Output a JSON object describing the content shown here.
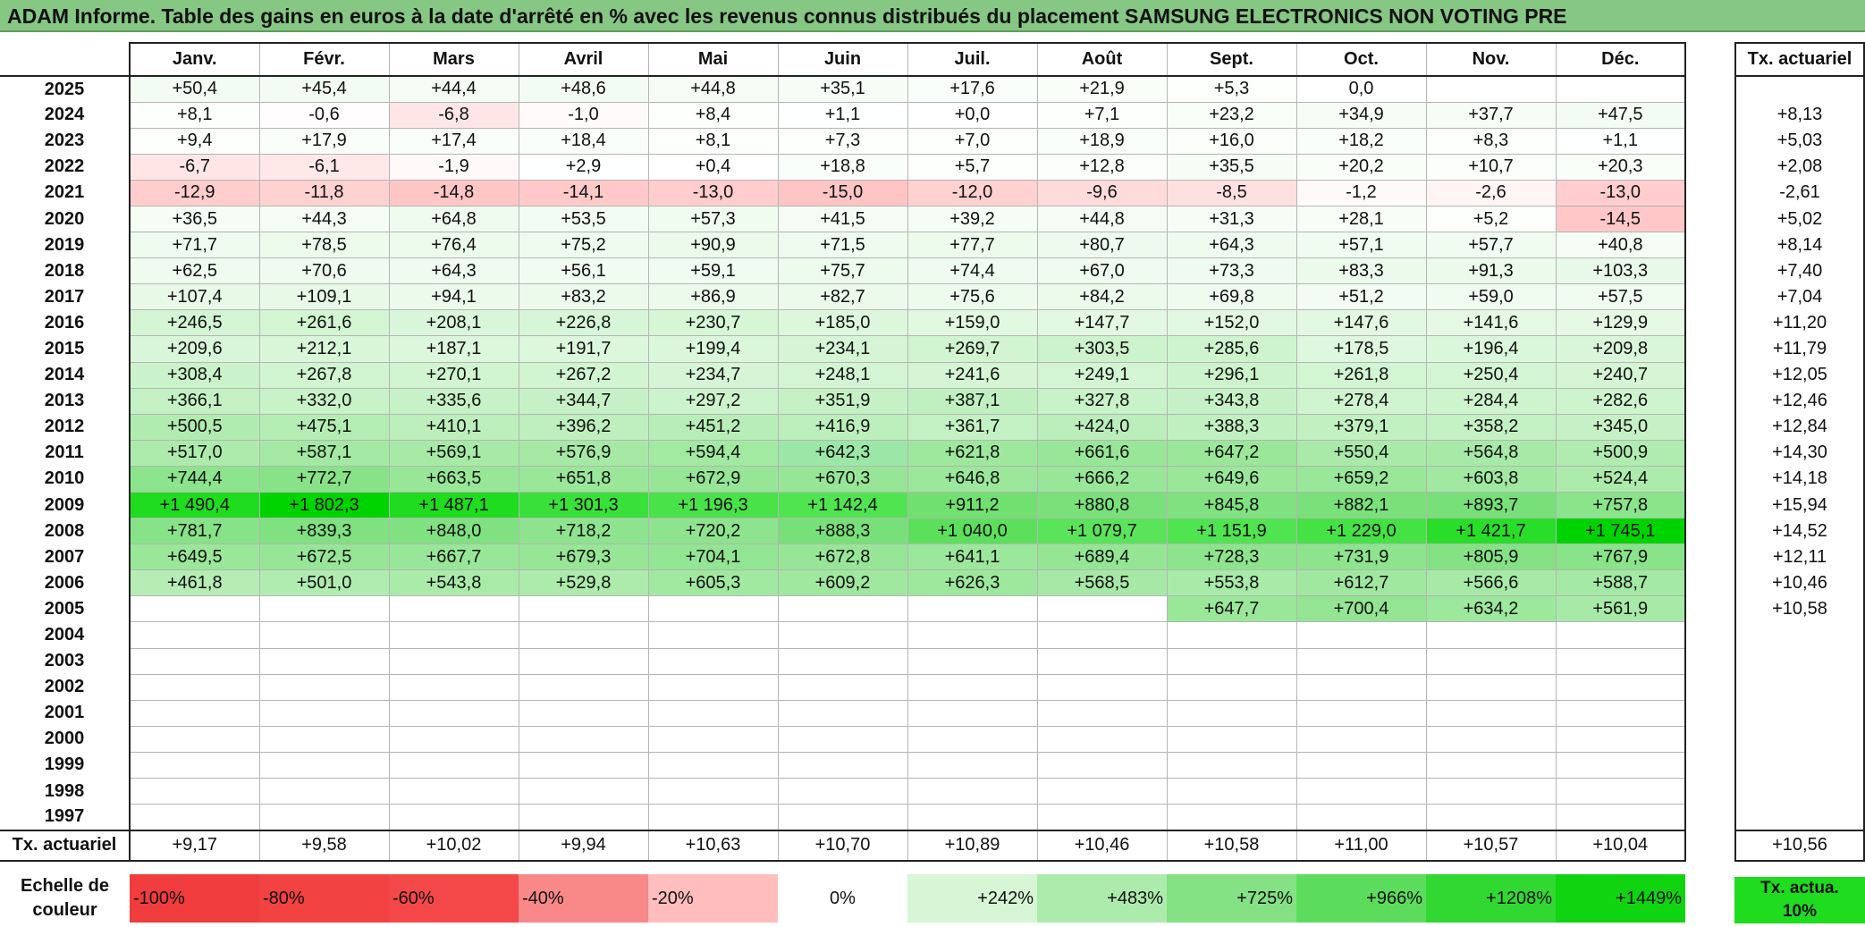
{
  "title": "ADAM Informe. Table des gains en euros à la date d'arrêté en % avec les revenus connus distribués du placement SAMSUNG ELECTRONICS NON VOTING PRE",
  "months": [
    "Janv.",
    "Févr.",
    "Mars",
    "Avril",
    "Mai",
    "Juin",
    "Juil.",
    "Août",
    "Sept.",
    "Oct.",
    "Nov.",
    "Déc."
  ],
  "tx_header": "Tx. actuariel",
  "rows": [
    {
      "year": "2025",
      "cells": [
        "+50,4",
        "+45,4",
        "+44,4",
        "+48,6",
        "+44,8",
        "+35,1",
        "+17,6",
        "+21,9",
        "+5,3",
        "0,0",
        "",
        ""
      ],
      "colors": [
        "#f3fcf3",
        "#f3fcf3",
        "#f4fcf4",
        "#f3fcf3",
        "#f4fcf4",
        "#f6fdf6",
        "#fafefa",
        "#f9fef9",
        "#fdfffd",
        "#ffffff",
        "#ffffff",
        "#ffffff"
      ],
      "tx": ""
    },
    {
      "year": "2024",
      "cells": [
        "+8,1",
        "-0,6",
        "-6,8",
        "-1,0",
        "+8,4",
        "+1,1",
        "+0,0",
        "+7,1",
        "+23,2",
        "+34,9",
        "+37,7",
        "+47,5"
      ],
      "colors": [
        "#fdfffd",
        "#fffdfd",
        "#ffe6e6",
        "#fffbfb",
        "#fdfffd",
        "#feffff",
        "#ffffff",
        "#fdfffd",
        "#f8fef8",
        "#f6fdf6",
        "#f5fdf5",
        "#f3fcf3"
      ],
      "tx": "+8,13"
    },
    {
      "year": "2023",
      "cells": [
        "+9,4",
        "+17,9",
        "+17,4",
        "+18,4",
        "+8,1",
        "+7,3",
        "+7,0",
        "+18,9",
        "+16,0",
        "+18,2",
        "+8,3",
        "+1,1"
      ],
      "colors": [
        "#fdfffd",
        "#fafefa",
        "#fafefa",
        "#fafefa",
        "#fdfffd",
        "#fdfffd",
        "#fdfffd",
        "#fafefa",
        "#fbfefb",
        "#fafefa",
        "#fdfffd",
        "#feffff"
      ],
      "tx": "+5,03"
    },
    {
      "year": "2022",
      "cells": [
        "-6,7",
        "-6,1",
        "-1,9",
        "+2,9",
        "+0,4",
        "+18,8",
        "+5,7",
        "+12,8",
        "+35,5",
        "+20,2",
        "+10,7",
        "+20,3"
      ],
      "colors": [
        "#ffe6e6",
        "#ffe8e8",
        "#fff9f9",
        "#feffff",
        "#ffffff",
        "#fafefa",
        "#fdfffd",
        "#fcfefc",
        "#f6fdf6",
        "#f9fef9",
        "#fcfefc",
        "#f9fef9"
      ],
      "tx": "+2,08"
    },
    {
      "year": "2021",
      "cells": [
        "-12,9",
        "-11,8",
        "-14,8",
        "-14,1",
        "-13,0",
        "-15,0",
        "-12,0",
        "-9,6",
        "-8,5",
        "-1,2",
        "-2,6",
        "-13,0"
      ],
      "colors": [
        "#ffcdcd",
        "#ffd2d2",
        "#ffc6c6",
        "#ffc9c9",
        "#ffcdcd",
        "#ffc5c5",
        "#ffd1d1",
        "#ffdbdb",
        "#ffe0e0",
        "#fffafa",
        "#fff5f5",
        "#ffcdcd"
      ],
      "tx": "-2,61"
    },
    {
      "year": "2020",
      "cells": [
        "+36,5",
        "+44,3",
        "+64,8",
        "+53,5",
        "+57,3",
        "+41,5",
        "+39,2",
        "+44,8",
        "+31,3",
        "+28,1",
        "+5,2",
        "-14,5"
      ],
      "colors": [
        "#f5fdf5",
        "#f4fcf4",
        "#f0fbf0",
        "#f2fcf2",
        "#f1fcf1",
        "#f4fcf4",
        "#f5fdf5",
        "#f4fcf4",
        "#f6fdf6",
        "#f7fdf7",
        "#fdfffd",
        "#ffc7c7"
      ],
      "tx": "+5,02"
    },
    {
      "year": "2019",
      "cells": [
        "+71,7",
        "+78,5",
        "+76,4",
        "+75,2",
        "+90,9",
        "+71,5",
        "+77,7",
        "+80,7",
        "+64,3",
        "+57,1",
        "+57,7",
        "+40,8"
      ],
      "colors": [
        "#eefbee",
        "#edfbed",
        "#edfbed",
        "#eefbee",
        "#ebfaeb",
        "#eefbee",
        "#edfbed",
        "#edfaed",
        "#f0fbf0",
        "#f1fcf1",
        "#f1fcf1",
        "#f4fcf4"
      ],
      "tx": "+8,14"
    },
    {
      "year": "2018",
      "cells": [
        "+62,5",
        "+70,6",
        "+64,3",
        "+56,1",
        "+59,1",
        "+75,7",
        "+74,4",
        "+67,0",
        "+73,3",
        "+83,3",
        "+91,3",
        "+103,3"
      ],
      "colors": [
        "#f0fbf0",
        "#eefbee",
        "#f0fbf0",
        "#f1fcf1",
        "#f1fcf1",
        "#edfbed",
        "#eefbee",
        "#effbef",
        "#eefbee",
        "#ecfaec",
        "#ebfaeb",
        "#e9f9e9"
      ],
      "tx": "+7,40"
    },
    {
      "year": "2017",
      "cells": [
        "+107,4",
        "+109,1",
        "+94,1",
        "+83,2",
        "+86,9",
        "+82,7",
        "+75,6",
        "+84,2",
        "+69,8",
        "+51,2",
        "+59,0",
        "+57,5"
      ],
      "colors": [
        "#e8f9e8",
        "#e8f9e8",
        "#ebfaeb",
        "#ecfaec",
        "#ecfaec",
        "#ecfaec",
        "#edfbed",
        "#ecfaec",
        "#effbef",
        "#f2fcf2",
        "#f1fcf1",
        "#f1fcf1"
      ],
      "tx": "+7,04"
    },
    {
      "year": "2016",
      "cells": [
        "+246,5",
        "+261,6",
        "+208,1",
        "+226,8",
        "+230,7",
        "+185,0",
        "+159,0",
        "+147,7",
        "+152,0",
        "+147,6",
        "+141,6",
        "+129,9"
      ],
      "colors": [
        "#d4f5d4",
        "#d2f5d2",
        "#daf6da",
        "#d7f6d7",
        "#d6f6d6",
        "#ddf7dd",
        "#e1f8e1",
        "#e3f8e3",
        "#e2f8e2",
        "#e3f8e3",
        "#e4f8e4",
        "#e5f9e5"
      ],
      "tx": "+11,20"
    },
    {
      "year": "2015",
      "cells": [
        "+209,6",
        "+212,1",
        "+187,1",
        "+191,7",
        "+199,4",
        "+234,1",
        "+269,7",
        "+303,5",
        "+285,6",
        "+178,5",
        "+196,4",
        "+209,8"
      ],
      "colors": [
        "#daf6da",
        "#d9f6d9",
        "#ddf7dd",
        "#dcf7dc",
        "#dbf7db",
        "#d6f5d6",
        "#d1f4d1",
        "#ccf3cc",
        "#cef4ce",
        "#def7de",
        "#dbf7db",
        "#daf6da"
      ],
      "tx": "+11,79"
    },
    {
      "year": "2014",
      "cells": [
        "+308,4",
        "+267,8",
        "+270,1",
        "+267,2",
        "+234,7",
        "+248,1",
        "+241,6",
        "+249,1",
        "+296,1",
        "+261,8",
        "+250,4",
        "+240,7"
      ],
      "colors": [
        "#cbf3cb",
        "#d1f4d1",
        "#d1f4d1",
        "#d1f4d1",
        "#d6f5d6",
        "#d4f5d4",
        "#d5f5d5",
        "#d4f5d4",
        "#cdf3cd",
        "#d2f5d2",
        "#d4f5d4",
        "#d5f5d5"
      ],
      "tx": "+12,05"
    },
    {
      "year": "2013",
      "cells": [
        "+366,1",
        "+332,0",
        "+335,6",
        "+344,7",
        "+297,2",
        "+351,9",
        "+387,1",
        "+327,8",
        "+343,8",
        "+278,4",
        "+284,4",
        "+282,6"
      ],
      "colors": [
        "#c3f1c3",
        "#c8f2c8",
        "#c7f2c7",
        "#c6f1c6",
        "#cdf3cd",
        "#c5f1c5",
        "#c0f0c0",
        "#c8f2c8",
        "#c6f1c6",
        "#cff4cf",
        "#cef4ce",
        "#cef4ce"
      ],
      "tx": "+12,46"
    },
    {
      "year": "2012",
      "cells": [
        "+500,5",
        "+475,1",
        "+410,1",
        "+396,2",
        "+451,2",
        "+416,9",
        "+361,7",
        "+424,0",
        "+388,3",
        "+379,1",
        "+358,2",
        "+345,0"
      ],
      "colors": [
        "#b0ecb0",
        "#b4edb4",
        "#bdefbd",
        "#bfefbf",
        "#b7eeb7",
        "#bcefbc",
        "#c3f1c3",
        "#bbeebb",
        "#c0f0c0",
        "#c1f0c1",
        "#c4f1c4",
        "#c6f1c6"
      ],
      "tx": "+12,84"
    },
    {
      "year": "2011",
      "cells": [
        "+517,0",
        "+587,1",
        "+569,1",
        "+576,9",
        "+594,4",
        "+642,3",
        "+621,8",
        "+661,6",
        "+647,2",
        "+550,4",
        "+564,8",
        "+500,9"
      ],
      "colors": [
        "#adebad",
        "#a3e9a3",
        "#a6eaa6",
        "#a5e9a5",
        "#a2e9a2",
        "#9be7a7",
        "#9ee89e",
        "#98e798",
        "#9ae79a",
        "#a9eaa9",
        "#a7eaa7",
        "#b0ecb0"
      ],
      "tx": "+14,30"
    },
    {
      "year": "2010",
      "cells": [
        "+744,4",
        "+772,7",
        "+663,5",
        "+651,8",
        "+672,9",
        "+670,3",
        "+646,8",
        "+666,2",
        "+649,6",
        "+659,2",
        "+603,8",
        "+524,4"
      ],
      "colors": [
        "#8ce48c",
        "#88e388",
        "#98e798",
        "#9ae79a",
        "#97e697",
        "#97e697",
        "#9be79b",
        "#98e798",
        "#9ae79a",
        "#99e799",
        "#a1e8a1",
        "#acebac"
      ],
      "tx": "+14,18"
    },
    {
      "year": "2009",
      "cells": [
        "+1 490,4",
        "+1 802,3",
        "+1 487,1",
        "+1 301,3",
        "+1 196,3",
        "+1 142,4",
        "+911,2",
        "+880,8",
        "+845,8",
        "+882,1",
        "+893,7",
        "+757,8"
      ],
      "colors": [
        "#1fdc1f",
        "#00d400",
        "#1fdc1f",
        "#3ae03a",
        "#49e249",
        "#51e451",
        "#70e070",
        "#7ae07a",
        "#80e180",
        "#7ae07a",
        "#78e078",
        "#8ae48a"
      ],
      "tx": "+15,94"
    },
    {
      "year": "2008",
      "cells": [
        "+781,7",
        "+839,3",
        "+848,0",
        "+718,2",
        "+720,2",
        "+888,3",
        "+1 040,0",
        "+1 079,7",
        "+1 151,9",
        "+1 229,0",
        "+1 421,7",
        "+1 745,1"
      ],
      "colors": [
        "#87e387",
        "#80e180",
        "#80e180",
        "#8ee48e",
        "#8ee48e",
        "#78e078",
        "#5ce05c",
        "#5ae45a",
        "#50e450",
        "#45e245",
        "#28de28",
        "#00d400"
      ],
      "tx": "+14,52"
    },
    {
      "year": "2007",
      "cells": [
        "+649,5",
        "+672,5",
        "+667,7",
        "+679,3",
        "+704,1",
        "+672,8",
        "+641,1",
        "+689,4",
        "+728,3",
        "+731,9",
        "+805,9",
        "+767,9"
      ],
      "colors": [
        "#9ae79a",
        "#97e697",
        "#98e798",
        "#96e696",
        "#92e592",
        "#97e697",
        "#9be79b",
        "#94e694",
        "#8de48d",
        "#8de48d",
        "#84e284",
        "#89e389"
      ],
      "tx": "+12,11"
    },
    {
      "year": "2006",
      "cells": [
        "+461,8",
        "+501,0",
        "+543,8",
        "+529,8",
        "+605,3",
        "+609,2",
        "+626,3",
        "+568,5",
        "+553,8",
        "+612,7",
        "+566,6",
        "+588,7"
      ],
      "colors": [
        "#b5edb5",
        "#b0ecb0",
        "#aaebaa",
        "#acebac",
        "#a1e8a1",
        "#a0e8a0",
        "#9ee89e",
        "#a6e9a6",
        "#a8eaa8",
        "#a0e8a0",
        "#a6eaa6",
        "#a3e9a3"
      ],
      "tx": "+10,46"
    },
    {
      "year": "2005",
      "cells": [
        "",
        "",
        "",
        "",
        "",
        "",
        "",
        "",
        "+647,7",
        "+700,4",
        "+634,2",
        "+561,9"
      ],
      "colors": [
        "#ffffff",
        "#ffffff",
        "#ffffff",
        "#ffffff",
        "#ffffff",
        "#ffffff",
        "#ffffff",
        "#ffffff",
        "#9ae79a",
        "#93e593",
        "#9ce89c",
        "#a7eaa7"
      ],
      "tx": "+10,58"
    },
    {
      "year": "2004",
      "cells": [
        "",
        "",
        "",
        "",
        "",
        "",
        "",
        "",
        "",
        "",
        "",
        ""
      ],
      "colors": [],
      "tx": ""
    },
    {
      "year": "2003",
      "cells": [
        "",
        "",
        "",
        "",
        "",
        "",
        "",
        "",
        "",
        "",
        "",
        ""
      ],
      "colors": [],
      "tx": ""
    },
    {
      "year": "2002",
      "cells": [
        "",
        "",
        "",
        "",
        "",
        "",
        "",
        "",
        "",
        "",
        "",
        ""
      ],
      "colors": [],
      "tx": ""
    },
    {
      "year": "2001",
      "cells": [
        "",
        "",
        "",
        "",
        "",
        "",
        "",
        "",
        "",
        "",
        "",
        ""
      ],
      "colors": [],
      "tx": ""
    },
    {
      "year": "2000",
      "cells": [
        "",
        "",
        "",
        "",
        "",
        "",
        "",
        "",
        "",
        "",
        "",
        ""
      ],
      "colors": [],
      "tx": ""
    },
    {
      "year": "1999",
      "cells": [
        "",
        "",
        "",
        "",
        "",
        "",
        "",
        "",
        "",
        "",
        "",
        ""
      ],
      "colors": [],
      "tx": ""
    },
    {
      "year": "1998",
      "cells": [
        "",
        "",
        "",
        "",
        "",
        "",
        "",
        "",
        "",
        "",
        "",
        ""
      ],
      "colors": [],
      "tx": ""
    },
    {
      "year": "1997",
      "cells": [
        "",
        "",
        "",
        "",
        "",
        "",
        "",
        "",
        "",
        "",
        "",
        ""
      ],
      "colors": [],
      "tx": ""
    }
  ],
  "footer": {
    "label": "Tx. actuariel",
    "cells": [
      "+9,17",
      "+9,58",
      "+10,02",
      "+9,94",
      "+10,63",
      "+10,70",
      "+10,89",
      "+10,46",
      "+10,58",
      "+11,00",
      "+10,57",
      "+10,04"
    ],
    "tx": "+10,56"
  },
  "scale": {
    "label": "Echelle de couleur",
    "items": [
      {
        "text": "-100%",
        "color": "#f03c3c",
        "align": "left"
      },
      {
        "text": "-80%",
        "color": "#f24242",
        "align": "left"
      },
      {
        "text": "-60%",
        "color": "#f44848",
        "align": "left"
      },
      {
        "text": "-40%",
        "color": "#f98888",
        "align": "left"
      },
      {
        "text": "-20%",
        "color": "#ffbdbd",
        "align": "left"
      },
      {
        "text": "0%",
        "color": "#ffffff",
        "align": "center"
      },
      {
        "text": "+242%",
        "color": "#d6f6d6",
        "align": "right"
      },
      {
        "text": "+483%",
        "color": "#adebad",
        "align": "right"
      },
      {
        "text": "+725%",
        "color": "#84e284",
        "align": "right"
      },
      {
        "text": "+966%",
        "color": "#5cdc5c",
        "align": "right"
      },
      {
        "text": "+1208%",
        "color": "#31d831",
        "align": "right"
      },
      {
        "text": "+1449%",
        "color": "#10d410",
        "align": "right"
      }
    ],
    "tx_label": "Tx. actua. 10%",
    "tx_color": "#1fdc1f"
  }
}
